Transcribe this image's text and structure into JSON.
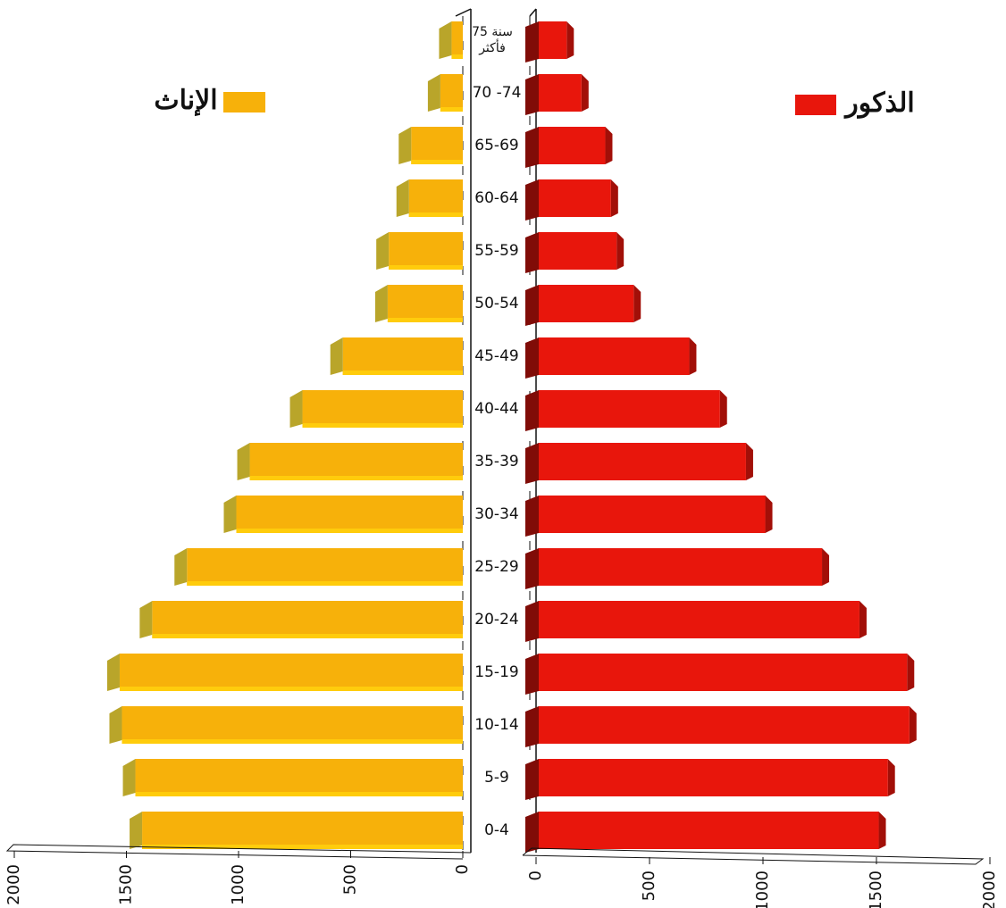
{
  "chart_data": {
    "type": "pyramid",
    "categories": [
      "0-4",
      "5-9",
      "10-14",
      "15-19",
      "20-24",
      "25-29",
      "30-34",
      "35-39",
      "40-44",
      "45-49",
      "50-54",
      "55-59",
      "60-64",
      "65-69",
      "70 -74",
      "75 سنة فأكثر"
    ],
    "series": [
      {
        "name": "الذكور",
        "color": "#e8160c",
        "values": [
          1510,
          1550,
          1645,
          1635,
          1425,
          1260,
          1010,
          925,
          810,
          675,
          430,
          355,
          330,
          305,
          200,
          135
        ]
      },
      {
        "name": "الإناث",
        "color": "#f7b10a",
        "values": [
          1430,
          1460,
          1520,
          1530,
          1385,
          1230,
          1010,
          950,
          715,
          535,
          335,
          330,
          240,
          230,
          100,
          50
        ]
      }
    ],
    "xlim": [
      0,
      2000
    ],
    "xticks": [
      0,
      500,
      1000,
      1500,
      2000
    ]
  }
}
